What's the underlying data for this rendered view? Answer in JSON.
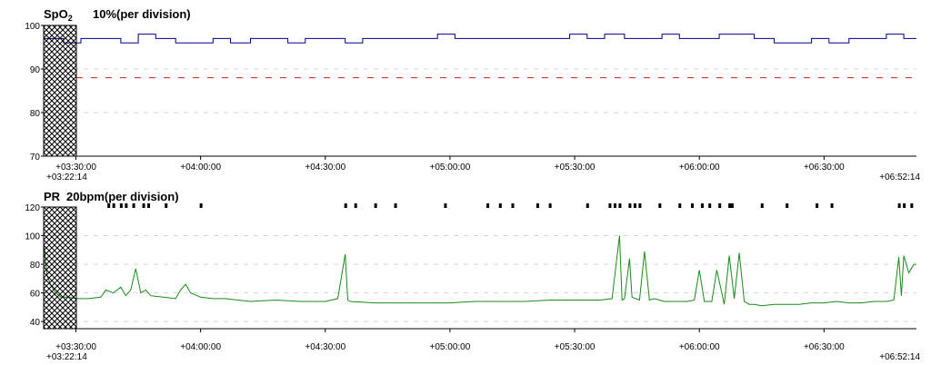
{
  "chart_data": [
    {
      "type": "line",
      "title": "SpO2",
      "title_main": "SpO",
      "title_sub": "2",
      "subtitle": "10%(per division)",
      "ylim": [
        70,
        100
      ],
      "yticks": [
        "100",
        "90",
        "80",
        "70"
      ],
      "ytick_values": [
        100,
        90,
        80,
        70
      ],
      "xticks": [
        "+03:30:00",
        "+04:00:00",
        "+04:30:00",
        "+05:00:00",
        "+05:30:00",
        "+06:00:00",
        "+06:30:00"
      ],
      "xtick_hours": [
        3.5,
        4.0,
        4.5,
        5.0,
        5.5,
        6.0,
        6.5
      ],
      "start_label": "+03:22:14",
      "end_label": "+06:52:14",
      "x_range_hours": [
        3.3706,
        6.8706
      ],
      "threshold": 88,
      "grid": true,
      "line_color": "#00008b",
      "threshold_color": "#d02020",
      "series": [
        {
          "x": [
            3.3706,
            3.45,
            3.52,
            3.6,
            3.68,
            3.75,
            3.82,
            3.9,
            3.98,
            4.05,
            4.12,
            4.2,
            4.28,
            4.35,
            4.42,
            4.5,
            4.58,
            4.65,
            4.72,
            4.8,
            4.88,
            4.95,
            5.02,
            5.1,
            5.18,
            5.25,
            5.32,
            5.4,
            5.48,
            5.55,
            5.62,
            5.7,
            5.78,
            5.85,
            5.92,
            6.0,
            6.08,
            6.15,
            6.22,
            6.3,
            6.38,
            6.45,
            6.52,
            6.6,
            6.68,
            6.75,
            6.82,
            6.8706
          ],
          "y": [
            97,
            96,
            97,
            97,
            96,
            98,
            97,
            96,
            96,
            97,
            96,
            97,
            97,
            96,
            97,
            97,
            96,
            97,
            97,
            97,
            97,
            98,
            97,
            97,
            97,
            97,
            97,
            97,
            98,
            97,
            98,
            97,
            97,
            98,
            97,
            97,
            98,
            98,
            97,
            96,
            96,
            97,
            96,
            97,
            97,
            98,
            97,
            97
          ]
        }
      ]
    },
    {
      "type": "line",
      "title": "PR",
      "subtitle": "20bpm(per division)",
      "ylim": [
        35,
        120
      ],
      "yticks": [
        "120",
        "100",
        "80",
        "60",
        "40"
      ],
      "ytick_values": [
        120,
        100,
        80,
        60,
        40
      ],
      "xticks": [
        "+03:30:00",
        "+04:00:00",
        "+04:30:00",
        "+05:00:00",
        "+05:30:00",
        "+06:00:00",
        "+06:30:00"
      ],
      "xtick_hours": [
        3.5,
        4.0,
        4.5,
        5.0,
        5.5,
        6.0,
        6.5
      ],
      "start_label": "+03:22:14",
      "end_label": "+06:52:14",
      "x_range_hours": [
        3.3706,
        6.8706
      ],
      "grid": true,
      "line_color": "#1a8a1a",
      "event_marks_hours": [
        3.63,
        3.65,
        3.68,
        3.7,
        3.73,
        3.77,
        3.79,
        3.86,
        4.0,
        4.58,
        4.62,
        4.7,
        4.78,
        4.98,
        5.15,
        5.2,
        5.25,
        5.35,
        5.4,
        5.55,
        5.64,
        5.66,
        5.68,
        5.72,
        5.74,
        5.76,
        5.84,
        5.92,
        5.97,
        6.01,
        6.04,
        6.08,
        6.12,
        6.13,
        6.25,
        6.35,
        6.47,
        6.53,
        6.8,
        6.82,
        6.85
      ],
      "series": [
        {
          "x": [
            3.3706,
            3.385,
            3.4,
            3.42,
            3.44,
            3.47,
            3.5,
            3.55,
            3.6,
            3.62,
            3.65,
            3.68,
            3.7,
            3.72,
            3.74,
            3.76,
            3.78,
            3.8,
            3.85,
            3.9,
            3.92,
            3.94,
            3.96,
            4.0,
            4.05,
            4.1,
            4.15,
            4.2,
            4.3,
            4.4,
            4.5,
            4.55,
            4.58,
            4.59,
            4.6,
            4.7,
            4.8,
            4.9,
            5.0,
            5.1,
            5.2,
            5.3,
            5.4,
            5.5,
            5.6,
            5.65,
            5.68,
            5.69,
            5.7,
            5.72,
            5.73,
            5.76,
            5.78,
            5.8,
            5.82,
            5.84,
            5.86,
            5.88,
            5.9,
            5.95,
            5.98,
            6.0,
            6.02,
            6.05,
            6.07,
            6.1,
            6.12,
            6.14,
            6.16,
            6.18,
            6.2,
            6.22,
            6.25,
            6.3,
            6.35,
            6.4,
            6.45,
            6.5,
            6.55,
            6.6,
            6.65,
            6.7,
            6.75,
            6.78,
            6.8,
            6.81,
            6.82,
            6.84,
            6.86,
            6.8706
          ],
          "y": [
            95,
            72,
            65,
            60,
            57,
            57,
            56,
            56,
            57,
            62,
            60,
            64,
            58,
            62,
            77,
            60,
            62,
            58,
            57,
            56,
            62,
            66,
            60,
            57,
            56,
            56,
            55,
            54,
            55,
            54,
            54,
            56,
            87,
            55,
            54,
            53,
            53,
            53,
            53,
            54,
            54,
            54,
            55,
            55,
            55,
            56,
            100,
            55,
            56,
            84,
            57,
            55,
            89,
            55,
            56,
            55,
            54,
            54,
            54,
            54,
            55,
            76,
            54,
            54,
            76,
            52,
            86,
            56,
            88,
            54,
            52,
            52,
            51,
            52,
            52,
            52,
            53,
            53,
            54,
            53,
            53,
            54,
            54,
            55,
            85,
            58,
            86,
            74,
            80,
            80
          ]
        }
      ]
    }
  ]
}
